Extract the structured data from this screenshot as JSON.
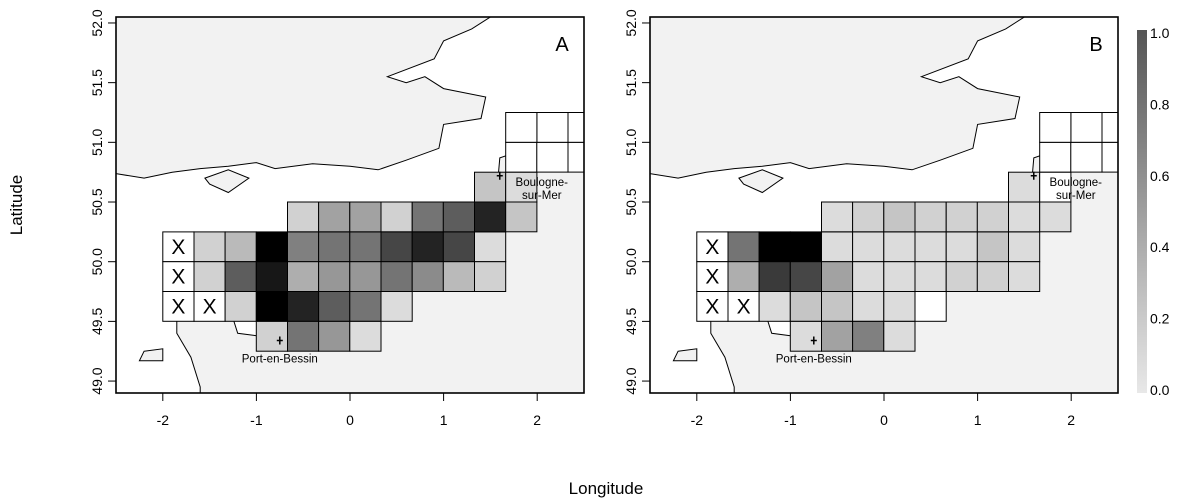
{
  "figure": {
    "xlabel": "Longitude",
    "ylabel": "Latitude"
  },
  "chart_data": {
    "type": "heatmap",
    "xlabel": "Longitude",
    "ylabel": "Latitude",
    "xlim": [
      -2.5,
      2.5
    ],
    "ylim": [
      48.9,
      52.05
    ],
    "x_ticks": [
      -2,
      -1,
      0,
      1,
      2
    ],
    "y_ticks": [
      49.0,
      49.5,
      50.0,
      50.5,
      51.0,
      51.5,
      52.0
    ],
    "x_tick_labels": [
      "-2",
      "-1",
      "0",
      "1",
      "2"
    ],
    "y_tick_labels": [
      "49.0",
      "49.5",
      "50.0",
      "50.5",
      "51.0",
      "51.5",
      "52.0"
    ],
    "grid_cell": {
      "lon_width": 0.333,
      "lat_height": 0.25
    },
    "grid_columns_lon_centers": [
      -1.833,
      -1.5,
      -1.167,
      -0.833,
      -0.5,
      -0.167,
      0.167,
      0.5,
      0.833,
      1.167,
      1.5,
      1.833,
      2.167
    ],
    "grid_rows_lat_centers": [
      49.375,
      49.625,
      49.875,
      50.125,
      50.375,
      50.625,
      50.875,
      51.125,
      51.375
    ],
    "colorbar": {
      "min": 0.0,
      "max": 1.0,
      "ticks": [
        0.0,
        0.2,
        0.4,
        0.6,
        0.8,
        1.0
      ],
      "tick_labels": [
        "0.0",
        "0.2",
        "0.4",
        "0.6",
        "0.8",
        "1.0"
      ],
      "low_color": "#e8e8e8",
      "high_color": "#000000"
    },
    "land_color": "#f2f2f2",
    "sea_color": "#ffffff",
    "places": [
      {
        "name": "Port-en-Bessin",
        "lon": -0.75,
        "lat": 49.34
      },
      {
        "name": "Boulogne-\nsur-Mer",
        "lon": 1.6,
        "lat": 50.72
      }
    ],
    "panels": [
      {
        "label": "A",
        "cells": [
          {
            "col": 0,
            "row": 4,
            "x": true
          },
          {
            "col": 1,
            "row": 4,
            "v": 0.1
          },
          {
            "col": 2,
            "row": 4,
            "v": 0.2
          },
          {
            "col": 3,
            "row": 4,
            "v": 1.0
          },
          {
            "col": 4,
            "row": 4,
            "v": 0.45
          },
          {
            "col": 5,
            "row": 4,
            "v": 0.5
          },
          {
            "col": 6,
            "row": 4,
            "v": 0.5
          },
          {
            "col": 7,
            "row": 4,
            "v": 0.7
          },
          {
            "col": 8,
            "row": 4,
            "v": 0.85
          },
          {
            "col": 9,
            "row": 4,
            "v": 0.7
          },
          {
            "col": 10,
            "row": 4,
            "v": 0.05
          },
          {
            "col": 4,
            "row": 5,
            "v": 0.1
          },
          {
            "col": 5,
            "row": 5,
            "v": 0.3
          },
          {
            "col": 6,
            "row": 5,
            "v": 0.3
          },
          {
            "col": 7,
            "row": 5,
            "v": 0.1
          },
          {
            "col": 8,
            "row": 5,
            "v": 0.5
          },
          {
            "col": 9,
            "row": 5,
            "v": 0.6
          },
          {
            "col": 10,
            "row": 5,
            "v": 0.85
          },
          {
            "col": 11,
            "row": 5,
            "v": 0.15
          },
          {
            "col": 10,
            "row": 6,
            "v": 0.15
          },
          {
            "col": 11,
            "row": 6,
            "v": 0.05
          },
          {
            "col": 0,
            "row": 3,
            "x": true
          },
          {
            "col": 1,
            "row": 3,
            "v": 0.1
          },
          {
            "col": 2,
            "row": 3,
            "v": 0.6
          },
          {
            "col": 3,
            "row": 3,
            "v": 0.9
          },
          {
            "col": 4,
            "row": 3,
            "v": 0.25
          },
          {
            "col": 5,
            "row": 3,
            "v": 0.35
          },
          {
            "col": 6,
            "row": 3,
            "v": 0.35
          },
          {
            "col": 7,
            "row": 3,
            "v": 0.5
          },
          {
            "col": 8,
            "row": 3,
            "v": 0.4
          },
          {
            "col": 9,
            "row": 3,
            "v": 0.2
          },
          {
            "col": 10,
            "row": 3,
            "v": 0.1
          },
          {
            "col": 0,
            "row": 2,
            "x": true
          },
          {
            "col": 1,
            "row": 2,
            "x": true
          },
          {
            "col": 2,
            "row": 2,
            "v": 0.1
          },
          {
            "col": 3,
            "row": 2,
            "v": 1.0
          },
          {
            "col": 4,
            "row": 2,
            "v": 0.85
          },
          {
            "col": 5,
            "row": 2,
            "v": 0.6
          },
          {
            "col": 6,
            "row": 2,
            "v": 0.5
          },
          {
            "col": 7,
            "row": 2,
            "v": 0.05
          },
          {
            "col": 3,
            "row": 1,
            "v": 0.1
          },
          {
            "col": 4,
            "row": 1,
            "v": 0.5
          },
          {
            "col": 5,
            "row": 1,
            "v": 0.35
          },
          {
            "col": 6,
            "row": 1,
            "v": 0.05
          },
          {
            "col": 11,
            "row": 7,
            "v": 0.0
          },
          {
            "col": 12,
            "row": 7,
            "v": 0.0
          },
          {
            "col": 12,
            "row": 8,
            "v": 0.0
          },
          {
            "col": 13,
            "row": 7,
            "v": 0.0
          },
          {
            "col": 13,
            "row": 8,
            "v": 0.0
          },
          {
            "col": 14,
            "row": 7,
            "v": 0.0
          },
          {
            "col": 14,
            "row": 8,
            "v": 0.0
          },
          {
            "col": 11,
            "row": 8,
            "v": 0.0
          }
        ]
      },
      {
        "label": "B",
        "cells": [
          {
            "col": 0,
            "row": 4,
            "x": true
          },
          {
            "col": 1,
            "row": 4,
            "v": 0.5
          },
          {
            "col": 2,
            "row": 4,
            "v": 1.0
          },
          {
            "col": 3,
            "row": 4,
            "v": 1.0
          },
          {
            "col": 4,
            "row": 4,
            "v": 0.05
          },
          {
            "col": 5,
            "row": 4,
            "v": 0.05
          },
          {
            "col": 6,
            "row": 4,
            "v": 0.05
          },
          {
            "col": 7,
            "row": 4,
            "v": 0.05
          },
          {
            "col": 8,
            "row": 4,
            "v": 0.05
          },
          {
            "col": 9,
            "row": 4,
            "v": 0.15
          },
          {
            "col": 10,
            "row": 4,
            "v": 0.05
          },
          {
            "col": 4,
            "row": 5,
            "v": 0.05
          },
          {
            "col": 5,
            "row": 5,
            "v": 0.1
          },
          {
            "col": 6,
            "row": 5,
            "v": 0.15
          },
          {
            "col": 7,
            "row": 5,
            "v": 0.1
          },
          {
            "col": 8,
            "row": 5,
            "v": 0.1
          },
          {
            "col": 9,
            "row": 5,
            "v": 0.1
          },
          {
            "col": 10,
            "row": 5,
            "v": 0.05
          },
          {
            "col": 11,
            "row": 5,
            "v": 0.05
          },
          {
            "col": 10,
            "row": 6,
            "v": 0.05
          },
          {
            "col": 11,
            "row": 6,
            "v": 0.0
          },
          {
            "col": 0,
            "row": 3,
            "x": true
          },
          {
            "col": 1,
            "row": 3,
            "v": 0.25
          },
          {
            "col": 2,
            "row": 3,
            "v": 0.75
          },
          {
            "col": 3,
            "row": 3,
            "v": 0.7
          },
          {
            "col": 4,
            "row": 3,
            "v": 0.3
          },
          {
            "col": 5,
            "row": 3,
            "v": 0.05
          },
          {
            "col": 6,
            "row": 3,
            "v": 0.05
          },
          {
            "col": 7,
            "row": 3,
            "v": 0.05
          },
          {
            "col": 8,
            "row": 3,
            "v": 0.1
          },
          {
            "col": 9,
            "row": 3,
            "v": 0.1
          },
          {
            "col": 10,
            "row": 3,
            "v": 0.05
          },
          {
            "col": 0,
            "row": 2,
            "x": true
          },
          {
            "col": 1,
            "row": 2,
            "x": true
          },
          {
            "col": 2,
            "row": 2,
            "v": 0.05
          },
          {
            "col": 3,
            "row": 2,
            "v": 0.15
          },
          {
            "col": 4,
            "row": 2,
            "v": 0.15
          },
          {
            "col": 5,
            "row": 2,
            "v": 0.05
          },
          {
            "col": 6,
            "row": 2,
            "v": 0.05
          },
          {
            "col": 7,
            "row": 2,
            "v": 0.0
          },
          {
            "col": 3,
            "row": 1,
            "v": 0.05
          },
          {
            "col": 4,
            "row": 1,
            "v": 0.3
          },
          {
            "col": 5,
            "row": 1,
            "v": 0.45
          },
          {
            "col": 6,
            "row": 1,
            "v": 0.05
          },
          {
            "col": 11,
            "row": 7,
            "v": 0.0
          },
          {
            "col": 12,
            "row": 7,
            "v": 0.0
          },
          {
            "col": 12,
            "row": 8,
            "v": 0.0
          },
          {
            "col": 13,
            "row": 7,
            "v": 0.0
          },
          {
            "col": 13,
            "row": 8,
            "v": 0.0
          },
          {
            "col": 14,
            "row": 7,
            "v": 0.0
          },
          {
            "col": 14,
            "row": 8,
            "v": 0.0
          },
          {
            "col": 11,
            "row": 8,
            "v": 0.0
          }
        ]
      }
    ]
  }
}
